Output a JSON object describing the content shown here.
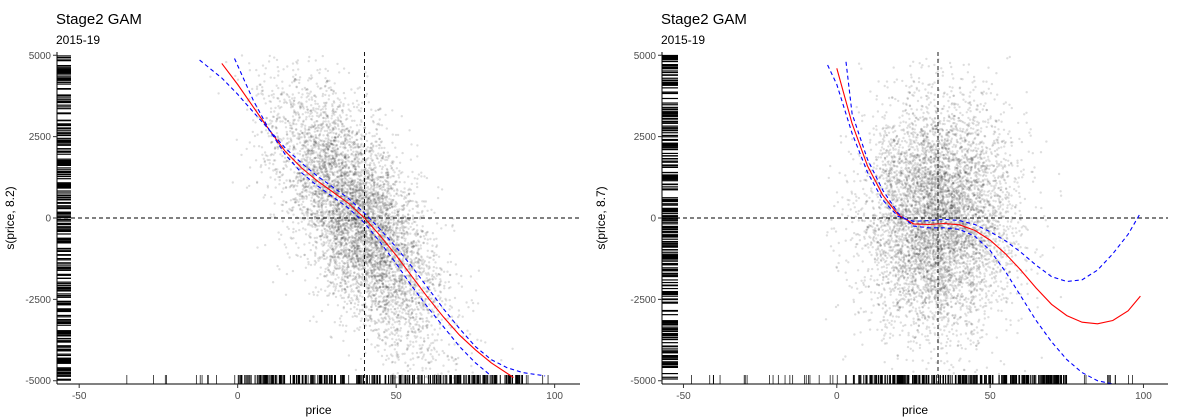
{
  "chart_data": [
    {
      "type": "scatter",
      "title": "Stage2 GAM",
      "subtitle": "2015-19",
      "xlabel": "price",
      "ylabel": "s(price, 8.2)",
      "xlim": [
        -57,
        108
      ],
      "ylim": [
        -5100,
        5100
      ],
      "x_ticks": [
        -50,
        0,
        50,
        100
      ],
      "y_ticks": [
        -5000,
        -2500,
        0,
        2500,
        5000
      ],
      "vline": 40,
      "hline": 0,
      "grid": false,
      "points": {
        "count": 6000,
        "x_mean": 38,
        "x_sd": 13,
        "slope": -100,
        "noise_sd": 1500,
        "x_min": -15,
        "x_max": 95
      },
      "rug_x": {
        "range": [
          -35,
          98
        ],
        "dense_range": [
          0,
          90
        ]
      },
      "rug_y": {
        "range": [
          -5000,
          5000
        ]
      },
      "series": [
        {
          "role": "fit",
          "color": "#ff0000",
          "dash": "solid",
          "x": [
            -5,
            0,
            5,
            10,
            15,
            20,
            25,
            30,
            35,
            40,
            45,
            50,
            55,
            60,
            65,
            70,
            75,
            80,
            87
          ],
          "y": [
            4750,
            4100,
            3400,
            2700,
            2050,
            1550,
            1150,
            800,
            450,
            0,
            -550,
            -1150,
            -1800,
            -2450,
            -3050,
            -3600,
            -4050,
            -4450,
            -4900
          ]
        },
        {
          "role": "upper",
          "color": "#0000ff",
          "dash": "dashed",
          "x": [
            -12,
            -5,
            0,
            5,
            10,
            15,
            20,
            25,
            30,
            35,
            40,
            45,
            50,
            55,
            60,
            65,
            70,
            75,
            80,
            85,
            90,
            97
          ],
          "y": [
            4850,
            4300,
            3800,
            3250,
            2700,
            2150,
            1700,
            1300,
            950,
            600,
            150,
            -350,
            -900,
            -1500,
            -2150,
            -2800,
            -3400,
            -3950,
            -4350,
            -4600,
            -4750,
            -4850
          ]
        },
        {
          "role": "lower",
          "color": "#0000ff",
          "dash": "dashed",
          "x": [
            -1,
            5,
            10,
            15,
            20,
            25,
            30,
            35,
            40,
            45,
            50,
            55,
            60,
            65,
            70,
            75,
            80
          ],
          "y": [
            4900,
            3600,
            2700,
            1950,
            1400,
            1000,
            650,
            300,
            -150,
            -750,
            -1400,
            -2100,
            -2750,
            -3350,
            -3950,
            -4450,
            -4850
          ]
        }
      ]
    },
    {
      "type": "scatter",
      "title": "Stage2 GAM",
      "subtitle": "2015-19",
      "xlabel": "price",
      "ylabel": "s(price, 8.7)",
      "xlim": [
        -57,
        108
      ],
      "ylim": [
        -5100,
        5100
      ],
      "x_ticks": [
        -50,
        0,
        50,
        100
      ],
      "y_ticks": [
        -5000,
        -2500,
        0,
        2500,
        5000
      ],
      "vline": 33,
      "hline": 0,
      "grid": false,
      "points": {
        "count": 6000,
        "x_mean": 33,
        "x_sd": 12,
        "slope": 0,
        "noise_sd": 1800,
        "x_min": -5,
        "x_max": 75
      },
      "rug_x": {
        "range": [
          -48,
          98
        ],
        "dense_range": [
          5,
          75
        ]
      },
      "rug_y": {
        "range": [
          -5000,
          5000
        ]
      },
      "series": [
        {
          "role": "fit",
          "color": "#ff0000",
          "dash": "solid",
          "x": [
            0,
            5,
            10,
            15,
            20,
            25,
            30,
            35,
            40,
            45,
            50,
            55,
            60,
            65,
            70,
            75,
            80,
            85,
            90,
            95,
            99
          ],
          "y": [
            4600,
            2900,
            1600,
            700,
            100,
            -180,
            -200,
            -170,
            -210,
            -380,
            -680,
            -1100,
            -1600,
            -2150,
            -2650,
            -3000,
            -3200,
            -3250,
            -3150,
            -2850,
            -2400
          ]
        },
        {
          "role": "upper",
          "color": "#0000ff",
          "dash": "dashed",
          "x": [
            -3,
            0,
            5,
            10,
            15,
            20,
            25,
            30,
            35,
            40,
            45,
            50,
            55,
            60,
            65,
            70,
            75,
            80,
            85,
            90,
            95,
            99
          ],
          "y": [
            4700,
            4100,
            2600,
            1400,
            550,
            50,
            -100,
            -80,
            -40,
            -80,
            -200,
            -420,
            -700,
            -1050,
            -1450,
            -1800,
            -1950,
            -1900,
            -1600,
            -1100,
            -500,
            150
          ]
        },
        {
          "role": "lower",
          "color": "#0000ff",
          "dash": "dashed",
          "x": [
            3,
            5,
            10,
            15,
            20,
            25,
            30,
            35,
            40,
            45,
            50,
            55,
            60,
            65,
            70,
            75,
            80,
            85,
            90
          ],
          "y": [
            4800,
            3200,
            1800,
            850,
            150,
            -250,
            -300,
            -300,
            -350,
            -560,
            -1000,
            -1650,
            -2400,
            -3150,
            -3800,
            -4350,
            -4750,
            -5000,
            -5100
          ]
        }
      ]
    }
  ]
}
